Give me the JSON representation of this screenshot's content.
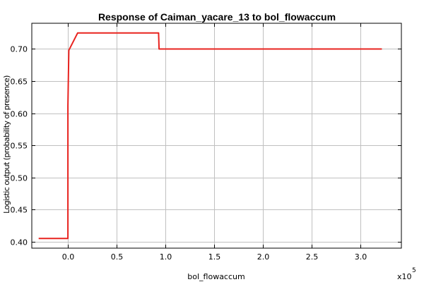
{
  "chart_data": {
    "type": "line",
    "title": "Response of Caiman_yacare_13 to bol_flowaccum",
    "xlabel": "bol_flowaccum",
    "ylabel": "Logistic output (probability of presence)",
    "x_multiplier_label": "x10",
    "x_multiplier_exponent": "5",
    "xlim": [
      -0.37,
      3.42
    ],
    "ylim": [
      0.39,
      0.74
    ],
    "x_ticks": [
      0.0,
      0.5,
      1.0,
      1.5,
      2.0,
      2.5,
      3.0
    ],
    "x_tick_labels": [
      "0.0",
      "0.5",
      "1.0",
      "1.5",
      "2.0",
      "2.5",
      "3.0"
    ],
    "y_ticks": [
      0.4,
      0.45,
      0.5,
      0.55,
      0.6,
      0.65,
      0.7
    ],
    "y_tick_labels": [
      "0.40",
      "0.45",
      "0.50",
      "0.55",
      "0.60",
      "0.65",
      "0.70"
    ],
    "grid": true,
    "line_color": "#e8231f",
    "series": [
      {
        "x": [
          -0.3,
          0.0,
          0.0,
          0.01,
          0.1,
          0.93,
          0.935,
          3.22
        ],
        "y": [
          0.405,
          0.405,
          0.612,
          0.698,
          0.725,
          0.725,
          0.7,
          0.7
        ]
      }
    ]
  }
}
